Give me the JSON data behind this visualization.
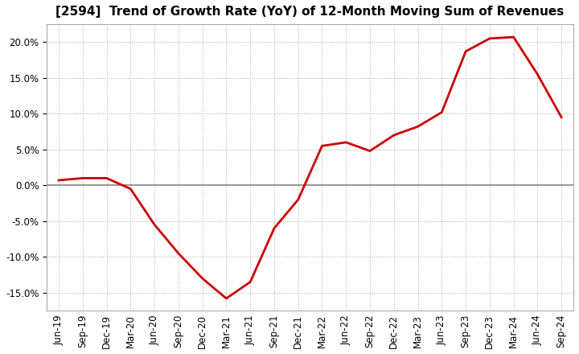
{
  "title": "[2594]  Trend of Growth Rate (YoY) of 12-Month Moving Sum of Revenues",
  "line_color": "#cc0000",
  "zero_line_color": "#888888",
  "background_color": "#ffffff",
  "plot_bg_color": "#ffffff",
  "grid_color": "#aaaaaa",
  "ylim": [
    -0.175,
    0.225
  ],
  "yticks": [
    -0.15,
    -0.1,
    -0.05,
    0.0,
    0.05,
    0.1,
    0.15,
    0.2
  ],
  "x_labels": [
    "Jun-19",
    "Sep-19",
    "Dec-19",
    "Mar-20",
    "Jun-20",
    "Sep-20",
    "Dec-20",
    "Mar-21",
    "Jun-21",
    "Sep-21",
    "Dec-21",
    "Mar-22",
    "Jun-22",
    "Sep-22",
    "Dec-22",
    "Mar-23",
    "Jun-23",
    "Sep-23",
    "Dec-23",
    "Mar-24",
    "Jun-24",
    "Sep-24"
  ],
  "y_values": [
    0.007,
    0.01,
    0.01,
    -0.005,
    -0.055,
    -0.095,
    -0.13,
    -0.158,
    -0.135,
    -0.06,
    -0.02,
    0.055,
    0.06,
    0.048,
    0.07,
    0.082,
    0.102,
    0.187,
    0.205,
    0.207,
    0.155,
    0.095
  ],
  "title_fontsize": 11,
  "tick_fontsize": 8.5,
  "line_width": 2.0
}
